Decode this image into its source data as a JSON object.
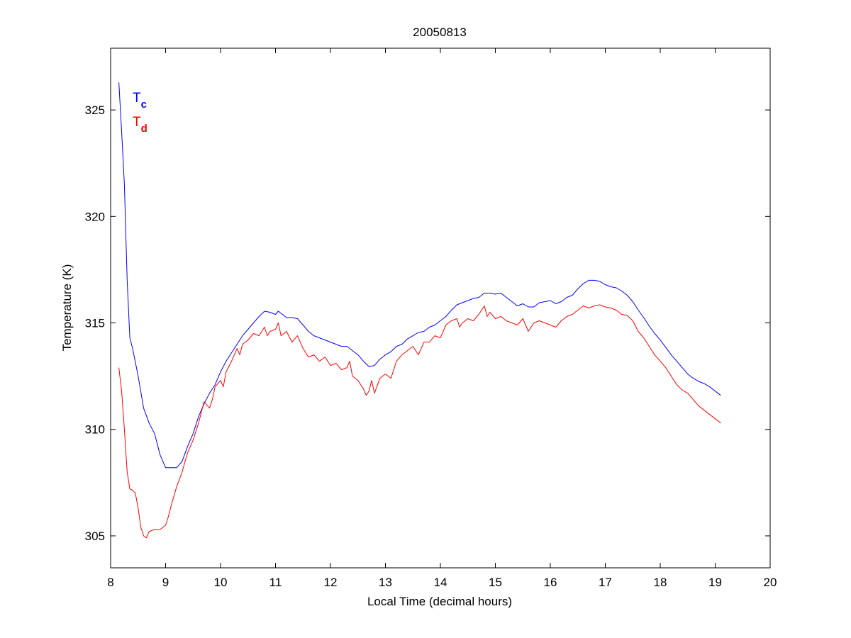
{
  "chart_data": {
    "type": "line",
    "title": "20050813",
    "xlabel": "Local Time (decimal hours)",
    "ylabel": "Temperature (K)",
    "xlim": [
      8,
      20
    ],
    "ylim": [
      303.5,
      327.9
    ],
    "xticks": [
      "8",
      "9",
      "10",
      "11",
      "12",
      "13",
      "14",
      "15",
      "16",
      "17",
      "18",
      "19",
      "20"
    ],
    "yticks": [
      "305",
      "310",
      "315",
      "320",
      "325"
    ],
    "grid": false,
    "legend": {
      "placement": "top-left",
      "entries": [
        {
          "main": "T",
          "sub": "c",
          "color": "#0000ff"
        },
        {
          "main": "T",
          "sub": "d",
          "color": "#ff0000"
        }
      ]
    },
    "series": [
      {
        "name": "Tc",
        "color": "#0000ff",
        "points": [
          [
            8.15,
            326.3
          ],
          [
            8.2,
            324.0
          ],
          [
            8.25,
            321.5
          ],
          [
            8.3,
            317.0
          ],
          [
            8.35,
            314.3
          ],
          [
            8.4,
            313.8
          ],
          [
            8.5,
            312.5
          ],
          [
            8.6,
            311.0
          ],
          [
            8.7,
            310.3
          ],
          [
            8.8,
            309.8
          ],
          [
            8.9,
            308.8
          ],
          [
            9.0,
            308.2
          ],
          [
            9.1,
            308.2
          ],
          [
            9.2,
            308.2
          ],
          [
            9.3,
            308.5
          ],
          [
            9.4,
            309.2
          ],
          [
            9.5,
            309.8
          ],
          [
            9.6,
            310.6
          ],
          [
            9.7,
            311.2
          ],
          [
            9.8,
            311.7
          ],
          [
            9.9,
            312.1
          ],
          [
            10.0,
            312.7
          ],
          [
            10.1,
            313.2
          ],
          [
            10.2,
            313.6
          ],
          [
            10.3,
            314.0
          ],
          [
            10.4,
            314.4
          ],
          [
            10.5,
            314.7
          ],
          [
            10.6,
            315.0
          ],
          [
            10.7,
            315.3
          ],
          [
            10.8,
            315.55
          ],
          [
            10.9,
            315.5
          ],
          [
            11.0,
            315.4
          ],
          [
            11.05,
            315.55
          ],
          [
            11.1,
            315.45
          ],
          [
            11.2,
            315.25
          ],
          [
            11.3,
            315.25
          ],
          [
            11.4,
            315.2
          ],
          [
            11.5,
            314.9
          ],
          [
            11.6,
            314.6
          ],
          [
            11.7,
            314.4
          ],
          [
            11.8,
            314.3
          ],
          [
            11.9,
            314.2
          ],
          [
            12.0,
            314.1
          ],
          [
            12.1,
            314.0
          ],
          [
            12.2,
            313.9
          ],
          [
            12.3,
            313.9
          ],
          [
            12.4,
            313.7
          ],
          [
            12.5,
            313.5
          ],
          [
            12.6,
            313.2
          ],
          [
            12.7,
            312.95
          ],
          [
            12.8,
            313.0
          ],
          [
            12.9,
            313.3
          ],
          [
            13.0,
            313.5
          ],
          [
            13.1,
            313.65
          ],
          [
            13.2,
            313.9
          ],
          [
            13.3,
            314.0
          ],
          [
            13.4,
            314.25
          ],
          [
            13.5,
            314.4
          ],
          [
            13.6,
            314.55
          ],
          [
            13.7,
            314.6
          ],
          [
            13.8,
            314.8
          ],
          [
            13.9,
            314.9
          ],
          [
            14.0,
            315.1
          ],
          [
            14.1,
            315.3
          ],
          [
            14.2,
            315.6
          ],
          [
            14.3,
            315.85
          ],
          [
            14.4,
            315.95
          ],
          [
            14.5,
            316.05
          ],
          [
            14.6,
            316.15
          ],
          [
            14.7,
            316.2
          ],
          [
            14.8,
            316.4
          ],
          [
            14.9,
            316.4
          ],
          [
            15.0,
            316.35
          ],
          [
            15.1,
            316.4
          ],
          [
            15.2,
            316.2
          ],
          [
            15.3,
            316.0
          ],
          [
            15.4,
            315.8
          ],
          [
            15.5,
            315.9
          ],
          [
            15.6,
            315.75
          ],
          [
            15.7,
            315.75
          ],
          [
            15.8,
            315.95
          ],
          [
            15.9,
            316.0
          ],
          [
            16.0,
            316.05
          ],
          [
            16.1,
            315.9
          ],
          [
            16.2,
            316.0
          ],
          [
            16.3,
            316.2
          ],
          [
            16.4,
            316.3
          ],
          [
            16.5,
            316.6
          ],
          [
            16.6,
            316.85
          ],
          [
            16.7,
            317.0
          ],
          [
            16.8,
            317.0
          ],
          [
            16.9,
            316.95
          ],
          [
            17.0,
            316.8
          ],
          [
            17.1,
            316.7
          ],
          [
            17.2,
            316.65
          ],
          [
            17.3,
            316.5
          ],
          [
            17.4,
            316.3
          ],
          [
            17.5,
            316.0
          ],
          [
            17.6,
            315.6
          ],
          [
            17.7,
            315.25
          ],
          [
            17.8,
            314.85
          ],
          [
            17.9,
            314.5
          ],
          [
            18.0,
            314.2
          ],
          [
            18.1,
            313.85
          ],
          [
            18.2,
            313.5
          ],
          [
            18.3,
            313.2
          ],
          [
            18.4,
            312.9
          ],
          [
            18.5,
            312.6
          ],
          [
            18.6,
            312.4
          ],
          [
            18.7,
            312.25
          ],
          [
            18.8,
            312.15
          ],
          [
            18.9,
            312.0
          ],
          [
            19.0,
            311.8
          ],
          [
            19.1,
            311.6
          ]
        ]
      },
      {
        "name": "Td",
        "color": "#ff0000",
        "points": [
          [
            8.15,
            312.9
          ],
          [
            8.2,
            311.8
          ],
          [
            8.25,
            310.0
          ],
          [
            8.3,
            308.0
          ],
          [
            8.35,
            307.2
          ],
          [
            8.4,
            307.15
          ],
          [
            8.45,
            307.0
          ],
          [
            8.5,
            306.3
          ],
          [
            8.55,
            305.4
          ],
          [
            8.6,
            305.0
          ],
          [
            8.65,
            304.9
          ],
          [
            8.7,
            305.2
          ],
          [
            8.8,
            305.3
          ],
          [
            8.9,
            305.3
          ],
          [
            9.0,
            305.5
          ],
          [
            9.05,
            305.9
          ],
          [
            9.1,
            306.4
          ],
          [
            9.2,
            307.3
          ],
          [
            9.3,
            308.0
          ],
          [
            9.4,
            308.9
          ],
          [
            9.5,
            309.5
          ],
          [
            9.6,
            310.3
          ],
          [
            9.7,
            311.3
          ],
          [
            9.8,
            311.0
          ],
          [
            9.85,
            311.4
          ],
          [
            9.9,
            312.0
          ],
          [
            10.0,
            312.3
          ],
          [
            10.05,
            312.0
          ],
          [
            10.1,
            312.7
          ],
          [
            10.2,
            313.2
          ],
          [
            10.3,
            313.8
          ],
          [
            10.35,
            313.5
          ],
          [
            10.4,
            314.0
          ],
          [
            10.5,
            314.2
          ],
          [
            10.6,
            314.5
          ],
          [
            10.7,
            314.4
          ],
          [
            10.8,
            314.8
          ],
          [
            10.85,
            314.4
          ],
          [
            10.9,
            314.6
          ],
          [
            11.0,
            314.7
          ],
          [
            11.05,
            315.0
          ],
          [
            11.1,
            314.4
          ],
          [
            11.2,
            314.6
          ],
          [
            11.3,
            314.1
          ],
          [
            11.4,
            314.4
          ],
          [
            11.5,
            313.8
          ],
          [
            11.6,
            313.4
          ],
          [
            11.7,
            313.5
          ],
          [
            11.8,
            313.2
          ],
          [
            11.9,
            313.4
          ],
          [
            12.0,
            313.0
          ],
          [
            12.1,
            313.1
          ],
          [
            12.2,
            312.8
          ],
          [
            12.3,
            312.9
          ],
          [
            12.35,
            313.2
          ],
          [
            12.4,
            312.5
          ],
          [
            12.5,
            312.3
          ],
          [
            12.6,
            311.9
          ],
          [
            12.65,
            311.6
          ],
          [
            12.7,
            311.8
          ],
          [
            12.75,
            312.3
          ],
          [
            12.8,
            311.7
          ],
          [
            12.9,
            312.4
          ],
          [
            13.0,
            312.6
          ],
          [
            13.1,
            312.4
          ],
          [
            13.2,
            313.2
          ],
          [
            13.3,
            313.5
          ],
          [
            13.4,
            313.7
          ],
          [
            13.5,
            313.9
          ],
          [
            13.6,
            313.5
          ],
          [
            13.7,
            314.1
          ],
          [
            13.8,
            314.1
          ],
          [
            13.9,
            314.4
          ],
          [
            14.0,
            314.3
          ],
          [
            14.1,
            314.9
          ],
          [
            14.2,
            315.1
          ],
          [
            14.3,
            315.2
          ],
          [
            14.35,
            314.8
          ],
          [
            14.4,
            315.0
          ],
          [
            14.5,
            315.2
          ],
          [
            14.6,
            315.1
          ],
          [
            14.7,
            315.4
          ],
          [
            14.8,
            315.8
          ],
          [
            14.85,
            315.3
          ],
          [
            14.9,
            315.5
          ],
          [
            15.0,
            315.2
          ],
          [
            15.1,
            315.3
          ],
          [
            15.2,
            315.1
          ],
          [
            15.3,
            315.0
          ],
          [
            15.4,
            314.9
          ],
          [
            15.5,
            315.2
          ],
          [
            15.6,
            314.6
          ],
          [
            15.7,
            315.0
          ],
          [
            15.8,
            315.1
          ],
          [
            15.9,
            315.0
          ],
          [
            16.0,
            314.9
          ],
          [
            16.1,
            314.8
          ],
          [
            16.2,
            315.1
          ],
          [
            16.3,
            315.3
          ],
          [
            16.4,
            315.4
          ],
          [
            16.5,
            315.6
          ],
          [
            16.6,
            315.8
          ],
          [
            16.7,
            315.7
          ],
          [
            16.8,
            315.8
          ],
          [
            16.9,
            315.85
          ],
          [
            17.0,
            315.75
          ],
          [
            17.1,
            315.7
          ],
          [
            17.2,
            315.6
          ],
          [
            17.3,
            315.4
          ],
          [
            17.4,
            315.35
          ],
          [
            17.5,
            315.1
          ],
          [
            17.6,
            314.6
          ],
          [
            17.7,
            314.3
          ],
          [
            17.8,
            313.9
          ],
          [
            17.9,
            313.5
          ],
          [
            18.0,
            313.2
          ],
          [
            18.1,
            312.9
          ],
          [
            18.2,
            312.5
          ],
          [
            18.3,
            312.1
          ],
          [
            18.4,
            311.85
          ],
          [
            18.5,
            311.7
          ],
          [
            18.6,
            311.4
          ],
          [
            18.7,
            311.1
          ],
          [
            18.8,
            310.9
          ],
          [
            18.9,
            310.7
          ],
          [
            19.0,
            310.5
          ],
          [
            19.1,
            310.3
          ]
        ]
      }
    ]
  }
}
